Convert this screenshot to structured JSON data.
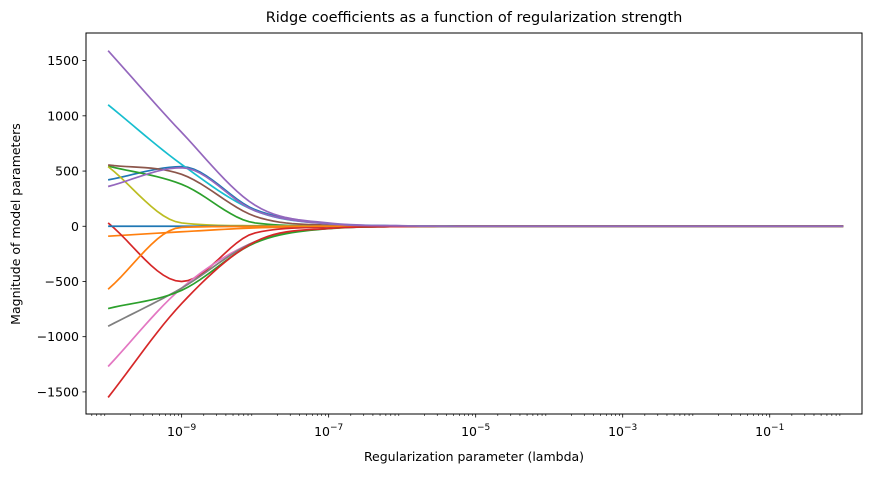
{
  "chart_data": {
    "type": "line",
    "title": "Ridge coefficients as a function of regularization strength",
    "xlabel": "Regularization parameter (lambda)",
    "ylabel": "Magnitude of model parameters",
    "xscale": "log",
    "xlim": [
      5e-11,
      1.8
    ],
    "ylim": [
      -1700,
      1750
    ],
    "grid": false,
    "legend": "none",
    "x_ticks": [
      {
        "value": 1e-09,
        "base": "10",
        "exp": "−9"
      },
      {
        "value": 1e-07,
        "base": "10",
        "exp": "−7"
      },
      {
        "value": 1e-05,
        "base": "10",
        "exp": "−5"
      },
      {
        "value": 0.001,
        "base": "10",
        "exp": "−3"
      },
      {
        "value": 0.1,
        "base": "10",
        "exp": "−1"
      }
    ],
    "y_ticks": [
      {
        "value": 1500,
        "label": "1500"
      },
      {
        "value": 1000,
        "label": "1000"
      },
      {
        "value": 500,
        "label": "500"
      },
      {
        "value": 0,
        "label": "0"
      },
      {
        "value": -500,
        "label": "−500"
      },
      {
        "value": -1000,
        "label": "−1000"
      },
      {
        "value": -1500,
        "label": "−1500"
      }
    ],
    "x": [
      1e-10,
      1e-09,
      1e-08,
      1e-07,
      1e-06,
      1e-05,
      0.0001,
      0.001,
      0.01,
      0.1,
      1
    ],
    "series": [
      {
        "color": "#1f77b4",
        "values": [
          420,
          540,
          150,
          25,
          4,
          1,
          0,
          0,
          0,
          0,
          0
        ]
      },
      {
        "color": "#ff7f0e",
        "values": [
          -90,
          -50,
          -15,
          -3,
          0,
          0,
          0,
          0,
          0,
          0,
          0
        ]
      },
      {
        "color": "#2ca02c",
        "values": [
          545,
          380,
          30,
          2,
          0,
          0,
          0,
          0,
          0,
          0,
          0
        ]
      },
      {
        "color": "#d62728",
        "values": [
          30,
          -500,
          -60,
          -8,
          -1,
          0,
          0,
          0,
          0,
          0,
          0
        ]
      },
      {
        "color": "#9467bd",
        "values": [
          1590,
          850,
          190,
          30,
          5,
          1,
          0,
          0,
          0,
          0,
          0
        ]
      },
      {
        "color": "#8c564b",
        "values": [
          555,
          470,
          90,
          10,
          1,
          0,
          0,
          0,
          0,
          0,
          0
        ]
      },
      {
        "color": "#e377c2",
        "values": [
          -1270,
          -560,
          -140,
          -20,
          -3,
          0,
          0,
          0,
          0,
          0,
          0
        ]
      },
      {
        "color": "#7f7f7f",
        "values": [
          -905,
          -560,
          -140,
          -20,
          -3,
          0,
          0,
          0,
          0,
          0,
          0
        ]
      },
      {
        "color": "#bcbd22",
        "values": [
          540,
          30,
          5,
          1,
          0,
          0,
          0,
          0,
          0,
          0,
          0
        ]
      },
      {
        "color": "#17becf",
        "values": [
          1100,
          560,
          140,
          22,
          3,
          0,
          0,
          0,
          0,
          0,
          0
        ]
      },
      {
        "color": "#1f77b4",
        "values": [
          0,
          0,
          0,
          0,
          0,
          0,
          0,
          0,
          0,
          0,
          0
        ]
      },
      {
        "color": "#ff7f0e",
        "values": [
          -570,
          -10,
          -2,
          0,
          0,
          0,
          0,
          0,
          0,
          0,
          0
        ]
      },
      {
        "color": "#2ca02c",
        "values": [
          -745,
          -580,
          -150,
          -22,
          -3,
          0,
          0,
          0,
          0,
          0,
          0
        ]
      },
      {
        "color": "#d62728",
        "values": [
          -1550,
          -700,
          -140,
          -20,
          -3,
          0,
          0,
          0,
          0,
          0,
          0
        ]
      },
      {
        "color": "#9467bd",
        "values": [
          360,
          530,
          140,
          22,
          3,
          0,
          0,
          0,
          0,
          0,
          0
        ]
      }
    ]
  }
}
